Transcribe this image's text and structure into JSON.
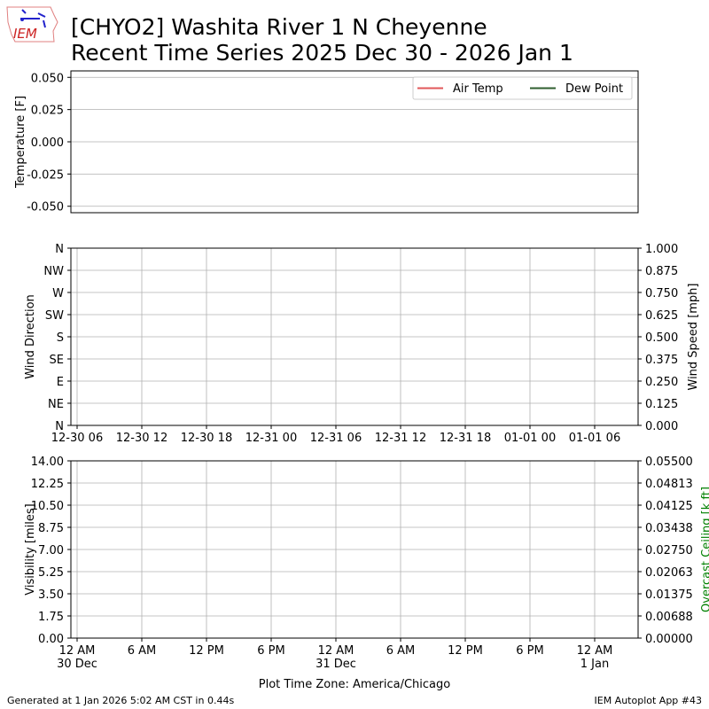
{
  "title_line1": "[CHYO2] Washita River 1 N Cheyenne",
  "title_line2": "Recent Time Series 2025 Dec 30 - 2026 Jan 1",
  "logo_text": "IEM",
  "footer_left": "Generated at 1 Jan 2026 5:02 AM CST in 0.44s",
  "footer_right": "IEM Autoplot App #43",
  "chart_data": [
    {
      "type": "line",
      "ylabel": "Temperature [F]",
      "ylim": [
        -0.055,
        0.055
      ],
      "yticks": [
        "0.050",
        "0.025",
        "0.000",
        "-0.025",
        "-0.050"
      ],
      "ytick_values": [
        0.05,
        0.025,
        0,
        -0.025,
        -0.05
      ],
      "grid": "horizontal",
      "legend_placement": "top-right",
      "series": [
        {
          "name": "Air Temp",
          "color": "#e15759",
          "values": []
        },
        {
          "name": "Dew Point",
          "color": "#2e5e2e",
          "values": []
        }
      ]
    },
    {
      "type": "line",
      "ylabel": "Wind Direction",
      "ylim": [
        0,
        360
      ],
      "yticks": [
        "N",
        "NE",
        "E",
        "SE",
        "S",
        "SW",
        "W",
        "NW",
        "N"
      ],
      "ytick_values": [
        0,
        45,
        90,
        135,
        180,
        225,
        270,
        315,
        360
      ],
      "y2label": "Wind Speed [mph]",
      "y2lim": [
        0,
        1
      ],
      "y2ticks": [
        "0.000",
        "0.125",
        "0.250",
        "0.375",
        "0.500",
        "0.625",
        "0.750",
        "0.875",
        "1.000"
      ],
      "xlabel_timezone": "UTC",
      "xticks": [
        "12-30 06",
        "12-30 12",
        "12-30 18",
        "12-31 00",
        "12-31 06",
        "12-31 12",
        "12-31 18",
        "01-01 00",
        "01-01 06"
      ],
      "grid": "both",
      "series": []
    },
    {
      "type": "line",
      "ylabel": "Visibility [miles]",
      "ylim": [
        0,
        14
      ],
      "yticks": [
        "0.00",
        "1.75",
        "3.50",
        "5.25",
        "7.00",
        "8.75",
        "10.50",
        "12.25",
        "14.00"
      ],
      "y2label": "Overcast Ceiling [k ft]",
      "y2label_color": "#008000",
      "y2lim": [
        0,
        0.055
      ],
      "y2ticks": [
        "0.00000",
        "0.00688",
        "0.01375",
        "0.02063",
        "0.02750",
        "0.03438",
        "0.04125",
        "0.04813",
        "0.05500"
      ],
      "xlabel": "Plot Time Zone: America/Chicago",
      "xticks": [
        [
          "12 AM",
          "30 Dec"
        ],
        [
          "6 AM",
          ""
        ],
        [
          "12 PM",
          ""
        ],
        [
          "6 PM",
          ""
        ],
        [
          "12 AM",
          "31 Dec"
        ],
        [
          "6 AM",
          ""
        ],
        [
          "12 PM",
          ""
        ],
        [
          "6 PM",
          ""
        ],
        [
          "12 AM",
          "1 Jan"
        ]
      ],
      "xlim": [
        "2025-12-29 23:25",
        "2026-01-01 04:00"
      ],
      "grid": "both",
      "series": []
    }
  ]
}
